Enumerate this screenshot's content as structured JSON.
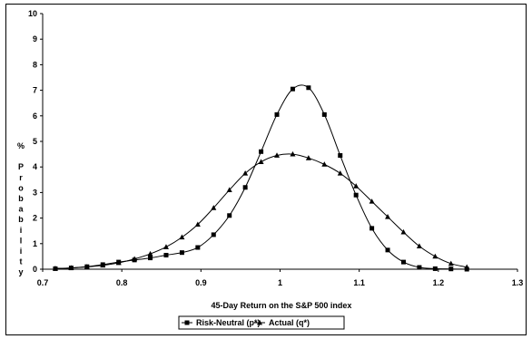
{
  "chart_data": {
    "type": "line",
    "title": "",
    "xlabel": "45-Day Return on the S&P 500 index",
    "ylabel": "% Probability",
    "ylabel_chars": [
      "%",
      "",
      "P",
      "r",
      "o",
      "b",
      "a",
      "b",
      "i",
      "l",
      "i",
      "t",
      "y"
    ],
    "xlim": [
      0.7,
      1.3
    ],
    "ylim": [
      0,
      10
    ],
    "xticks": [
      "0.7",
      "0.8",
      "0.9",
      "1",
      "1.1",
      "1.2",
      "1.3"
    ],
    "xtick_values": [
      0.7,
      0.8,
      0.9,
      1.0,
      1.1,
      1.2,
      1.3
    ],
    "yticks": [
      "0",
      "1",
      "2",
      "3",
      "4",
      "5",
      "6",
      "7",
      "8",
      "9",
      "10"
    ],
    "ytick_values": [
      0,
      1,
      2,
      3,
      4,
      5,
      6,
      7,
      8,
      9,
      10
    ],
    "grid": false,
    "legend_position": "bottom-center",
    "series": [
      {
        "name": "Risk-Neutral (p*)",
        "marker": "square",
        "color": "#000000",
        "x": [
          0.716,
          0.736,
          0.756,
          0.776,
          0.796,
          0.816,
          0.836,
          0.856,
          0.876,
          0.896,
          0.916,
          0.936,
          0.956,
          0.976,
          0.996,
          1.016,
          1.036,
          1.056,
          1.076,
          1.096,
          1.116,
          1.136,
          1.156,
          1.176,
          1.196,
          1.216,
          1.236
        ],
        "values": [
          0.02,
          0.05,
          0.1,
          0.18,
          0.28,
          0.36,
          0.44,
          0.55,
          0.65,
          0.85,
          1.35,
          2.1,
          3.2,
          4.6,
          6.05,
          7.05,
          7.1,
          6.05,
          4.45,
          2.9,
          1.6,
          0.75,
          0.28,
          0.07,
          0.02,
          0.01,
          0.0
        ]
      },
      {
        "name": "Actual (q*)",
        "marker": "triangle",
        "color": "#000000",
        "x": [
          0.716,
          0.736,
          0.756,
          0.776,
          0.796,
          0.816,
          0.836,
          0.856,
          0.876,
          0.896,
          0.916,
          0.936,
          0.956,
          0.976,
          0.996,
          1.016,
          1.036,
          1.056,
          1.076,
          1.096,
          1.116,
          1.136,
          1.156,
          1.176,
          1.196,
          1.216,
          1.236
        ],
        "values": [
          0.03,
          0.05,
          0.09,
          0.15,
          0.25,
          0.4,
          0.6,
          0.87,
          1.25,
          1.75,
          2.4,
          3.1,
          3.75,
          4.2,
          4.45,
          4.5,
          4.35,
          4.1,
          3.75,
          3.25,
          2.65,
          2.05,
          1.45,
          0.9,
          0.5,
          0.22,
          0.08
        ]
      }
    ]
  }
}
